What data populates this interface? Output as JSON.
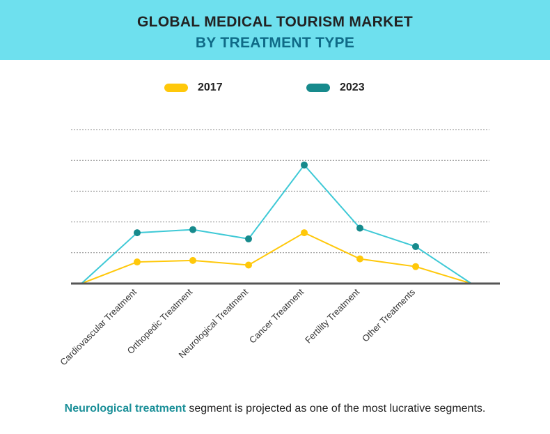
{
  "header": {
    "title_line1": "GLOBAL MEDICAL TOURISM MARKET",
    "title_line2": "BY TREATMENT TYPE"
  },
  "colors": {
    "header_bg": "#6ee0ee",
    "series_2017": "#ffc80a",
    "series_2023_line": "#3ec9d6",
    "series_2023_point": "#178a8c",
    "axis": "#555555",
    "caption_highlight": "#1a8f98"
  },
  "caption": {
    "highlight": "Neurological treatment",
    "rest": " segment is projected as one of the most lucrative segments."
  },
  "chart_data": {
    "type": "line",
    "categories": [
      "",
      "Cardiovascular Treatment",
      "Orthopedic Treatment",
      "Neurological Treatment",
      "Cancer Treatment",
      "Fertility Treatment",
      "Other Treatments",
      ""
    ],
    "series": [
      {
        "name": "2017",
        "values": [
          0,
          0.7,
          0.75,
          0.6,
          1.65,
          0.8,
          0.55,
          0
        ]
      },
      {
        "name": "2023",
        "values": [
          0,
          1.65,
          1.75,
          1.45,
          3.85,
          1.8,
          1.2,
          0
        ]
      }
    ],
    "ylim": [
      0,
      5
    ],
    "grid": true,
    "legend": "top",
    "xlabel": "",
    "ylabel": ""
  }
}
